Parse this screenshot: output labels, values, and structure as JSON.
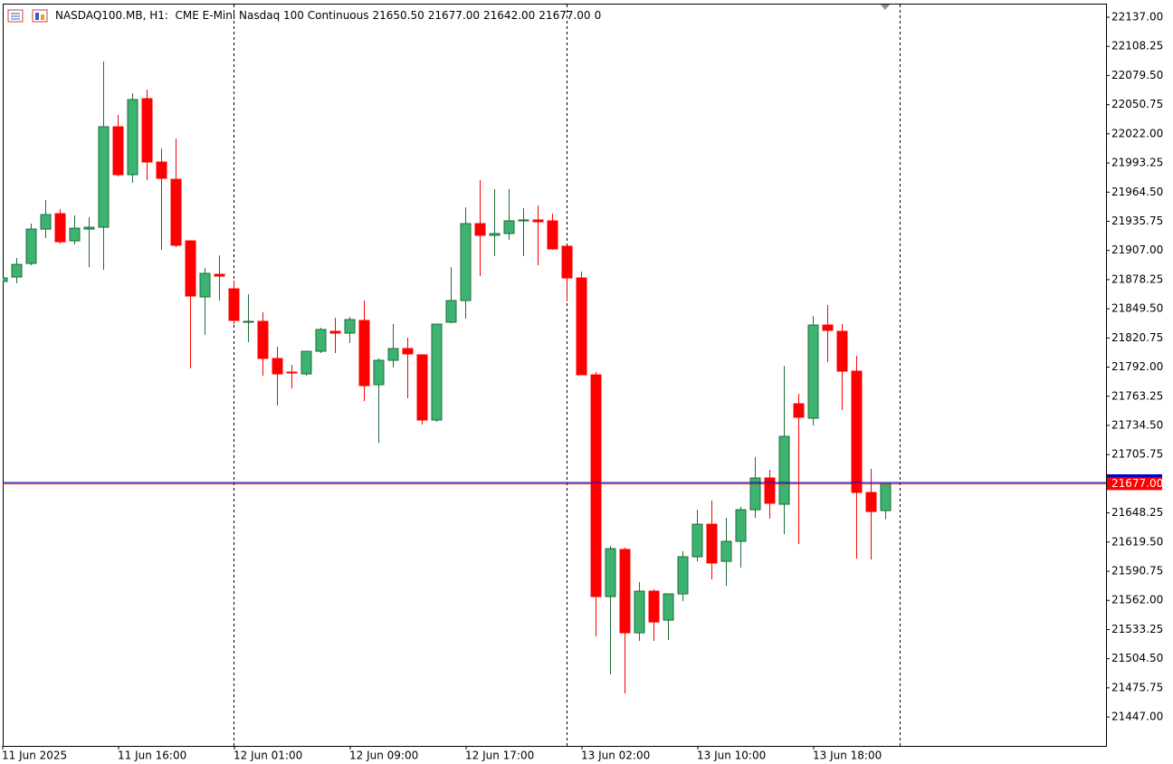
{
  "chart_data": {
    "type": "candlestick",
    "title": "NASDAQ100.MB, H1:  CME E-Mini Nasdaq 100 Continuous",
    "title_values": [
      "21650.50",
      "21677.00",
      "21642.00",
      "21677.00",
      "0"
    ],
    "up_color": "#3cb371",
    "down_color": "#ff0000",
    "x": [
      "11 Jun 2025",
      null,
      null,
      null,
      null,
      null,
      null,
      null,
      "11 Jun 16:00",
      null,
      null,
      null,
      null,
      null,
      null,
      null,
      "12 Jun 01:00",
      null,
      null,
      null,
      null,
      null,
      null,
      null,
      "12 Jun 09:00",
      null,
      null,
      null,
      null,
      null,
      null,
      null,
      "12 Jun 17:00",
      null,
      null,
      null,
      null,
      null,
      null,
      null,
      "13 Jun 02:00",
      null,
      null,
      null,
      null,
      null,
      null,
      null,
      "13 Jun 10:00",
      null,
      null,
      null,
      null,
      null,
      null,
      null,
      "13 Jun 18:00",
      null,
      null,
      null,
      null,
      null
    ],
    "open": [
      21876.4,
      21880.8,
      21894.2,
      21928.1,
      21943.3,
      21916.5,
      21928.1,
      21929.9,
      22029.0,
      21981.7,
      22056.7,
      21994.2,
      21977.2,
      21916.5,
      21861.2,
      21883.5,
      21869.2,
      21836.2,
      21837.1,
      21800.5,
      21787.1,
      21785.3,
      21807.6,
      21827.3,
      21825.5,
      21838.0,
      21774.6,
      21798.7,
      21810.3,
      21804.1,
      21739.8,
      21836.2,
      21857.6,
      21933.5,
      21921.9,
      21923.7,
      21936.2,
      21937.1,
      21936.2,
      21911.2,
      21879.9,
      21784.4,
      21565.7,
      21612.2,
      21530.0,
      21571.1,
      21542.5,
      21568.4,
      21605.0,
      21637.1,
      21600.5,
      21620.2,
      21651.4,
      21682.7,
      21656.8,
      21755.9,
      21741.6,
      21833.5,
      21827.3,
      21788.0,
      21668.4,
      21650.5
    ],
    "high": [
      21881.7,
      21899.6,
      21933.5,
      21956.7,
      21947.8,
      21941.5,
      21939.7,
      22093.3,
      22040.6,
      22062.0,
      22065.6,
      22007.6,
      22017.4,
      21916.5,
      21889.7,
      21902.2,
      21877.3,
      21863.9,
      21846.0,
      21812.1,
      21794.2,
      21807.6,
      21830.8,
      21840.7,
      21841.5,
      21857.6,
      21800.5,
      21834.4,
      21821.0,
      21804.1,
      21834.4,
      21890.6,
      21949.6,
      21976.3,
      21967.4,
      21967.4,
      21948.7,
      21951.3,
      21943.3,
      21911.2,
      21886.2,
      21787.1,
      21615.7,
      21613.9,
      21580.0,
      21572.9,
      21568.4,
      21610.4,
      21651.4,
      21660.4,
      21643.4,
      21654.1,
      21703.2,
      21690.7,
      21793.3,
      21765.7,
      21842.4,
      21853.2,
      21834.4,
      21803.2,
      21691.6,
      21677
    ],
    "low": [
      21875.5,
      21874.6,
      21892.4,
      21919.2,
      21913.8,
      21913.0,
      21890.6,
      21888.0,
      21979.9,
      21973.7,
      21976.3,
      21907.6,
      21910.3,
      21790.7,
      21823.7,
      21857.6,
      21834.4,
      21816.6,
      21783.5,
      21754.1,
      21771.0,
      21783.5,
      21805.9,
      21805.9,
      21815.7,
      21758.5,
      21717.5,
      21791.6,
      21761.2,
      21735.3,
      21738.0,
      21835.3,
      21839.8,
      21881.7,
      21901.4,
      21917.4,
      21901.4,
      21892.4,
      21907.6,
      21856.7,
      21784.4,
      21526.5,
      21489.0,
      21470.2,
      21522.0,
      21522.0,
      21522.9,
      21561.3,
      21600.5,
      21582.7,
      21576.4,
      21594.3,
      21643.4,
      21642.5,
      21627.3,
      21617.5,
      21734.4,
      21796.9,
      21749.6,
      21603.2,
      21602.3,
      21642
    ],
    "close": [
      21879.9,
      21893.3,
      21928.1,
      21942.4,
      21915.6,
      21929.0,
      21929.9,
      22029.0,
      21981.7,
      22055.8,
      21994.2,
      21978.1,
      21912.1,
      21862.1,
      21884.4,
      21881.7,
      21838.0,
      21837.1,
      21800.5,
      21785.3,
      21786.2,
      21807.6,
      21829.1,
      21825.5,
      21838.9,
      21773.7,
      21798.7,
      21810.3,
      21805.0,
      21739.8,
      21834.4,
      21857.6,
      21933.5,
      21921.9,
      21923.7,
      21936.2,
      21937.1,
      21935.3,
      21908.5,
      21879.9,
      21784.4,
      21565.7,
      21613.0,
      21530.0,
      21571.1,
      21540.7,
      21568.4,
      21605.0,
      21637.1,
      21598.8,
      21620.2,
      21651.4,
      21682.7,
      21657.7,
      21723.7,
      21742.5,
      21833.5,
      21828.2,
      21788.0,
      21668.4,
      21649.6,
      21677
    ],
    "price_line": {
      "value": 21677,
      "label": "21677.00",
      "color": "#ff0000"
    },
    "ask_line": {
      "value": 21678.25,
      "color": "#0000cc"
    },
    "ylim": [
      21418.5,
      22150.4
    ],
    "yticks": [
      {
        "value": 22137,
        "label": "22137.00"
      },
      {
        "value": 22108.25,
        "label": "22108.25"
      },
      {
        "value": 22079.5,
        "label": "22079.50"
      },
      {
        "value": 22050.75,
        "label": "22050.75"
      },
      {
        "value": 22022,
        "label": "22022.00"
      },
      {
        "value": 21993.25,
        "label": "21993.25"
      },
      {
        "value": 21964.5,
        "label": "21964.50"
      },
      {
        "value": 21935.75,
        "label": "21935.75"
      },
      {
        "value": 21907,
        "label": "21907.00"
      },
      {
        "value": 21878.25,
        "label": "21878.25"
      },
      {
        "value": 21849.5,
        "label": "21849.50"
      },
      {
        "value": 21820.75,
        "label": "21820.75"
      },
      {
        "value": 21792,
        "label": "21792.00"
      },
      {
        "value": 21763.25,
        "label": "21763.25"
      },
      {
        "value": 21734.5,
        "label": "21734.50"
      },
      {
        "value": 21705.75,
        "label": "21705.75"
      },
      {
        "value": 21677,
        "label": "21677.00"
      },
      {
        "value": 21648.25,
        "label": "21648.25"
      },
      {
        "value": 21619.5,
        "label": "21619.50"
      },
      {
        "value": 21590.75,
        "label": "21590.75"
      },
      {
        "value": 21562,
        "label": "21562.00"
      },
      {
        "value": 21533.25,
        "label": "21533.25"
      },
      {
        "value": 21504.5,
        "label": "21504.50"
      },
      {
        "value": 21475.75,
        "label": "21475.75"
      },
      {
        "value": 21447,
        "label": "21447.00"
      }
    ]
  }
}
